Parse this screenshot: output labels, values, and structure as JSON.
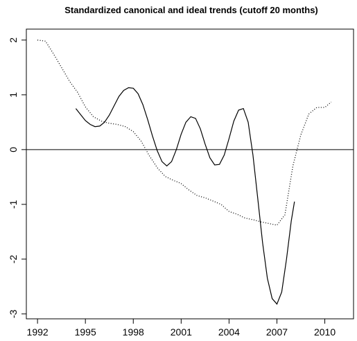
{
  "chart_data": {
    "type": "line",
    "title": "Standardized canonical and ideal trends (cutoff 20 months)",
    "xlim": [
      1991.3,
      2011.8
    ],
    "ylim": [
      -3.09,
      2.2
    ],
    "xticks": [
      1992,
      1995,
      1998,
      2001,
      2004,
      2007,
      2010
    ],
    "yticks": [
      -3,
      -2,
      -1,
      0,
      1,
      2
    ],
    "hline": 0,
    "series": [
      {
        "color": "#000000",
        "style": "solid",
        "x": [
          1994.4,
          1994.75,
          1995.0,
          1995.3,
          1995.6,
          1995.9,
          1996.2,
          1996.5,
          1996.8,
          1997.1,
          1997.4,
          1997.7,
          1998.0,
          1998.3,
          1998.6,
          1998.9,
          1999.2,
          1999.5,
          1999.8,
          2000.1,
          2000.4,
          2000.7,
          2001.0,
          2001.3,
          2001.6,
          2001.9,
          2002.2,
          2002.5,
          2002.8,
          2003.1,
          2003.4,
          2003.7,
          2004.0,
          2004.3,
          2004.6,
          2004.9,
          2005.2,
          2005.5,
          2005.8,
          2006.1,
          2006.4,
          2006.7,
          2007.0,
          2007.3,
          2007.6,
          2007.9,
          2008.1
        ],
        "values": [
          0.75,
          0.62,
          0.53,
          0.46,
          0.42,
          0.43,
          0.5,
          0.63,
          0.8,
          0.97,
          1.08,
          1.13,
          1.12,
          1.02,
          0.82,
          0.55,
          0.25,
          -0.02,
          -0.22,
          -0.3,
          -0.22,
          0.0,
          0.28,
          0.5,
          0.6,
          0.57,
          0.38,
          0.1,
          -0.15,
          -0.28,
          -0.27,
          -0.1,
          0.2,
          0.52,
          0.72,
          0.75,
          0.5,
          -0.1,
          -0.9,
          -1.7,
          -2.35,
          -2.72,
          -2.82,
          -2.6,
          -2.0,
          -1.3,
          -0.95
        ]
      },
      {
        "color": "#000000",
        "style": "dotted",
        "x": [
          1992.0,
          1992.5,
          1993.0,
          1993.5,
          1994.0,
          1994.5,
          1995.0,
          1995.5,
          1996.0,
          1996.5,
          1997.0,
          1997.5,
          1998.0,
          1998.5,
          1999.0,
          1999.5,
          2000.0,
          2000.5,
          2001.0,
          2001.5,
          2002.0,
          2002.5,
          2003.0,
          2003.5,
          2004.0,
          2004.5,
          2005.0,
          2005.5,
          2006.0,
          2006.5,
          2007.0,
          2007.5,
          2008.0,
          2008.5,
          2009.0,
          2009.5,
          2010.0,
          2010.4
        ],
        "values": [
          2.0,
          1.98,
          1.75,
          1.5,
          1.25,
          1.05,
          0.78,
          0.6,
          0.52,
          0.48,
          0.46,
          0.42,
          0.33,
          0.15,
          -0.11,
          -0.33,
          -0.49,
          -0.56,
          -0.62,
          -0.74,
          -0.84,
          -0.88,
          -0.94,
          -1.0,
          -1.13,
          -1.18,
          -1.25,
          -1.28,
          -1.32,
          -1.35,
          -1.38,
          -1.19,
          -0.3,
          0.27,
          0.65,
          0.77,
          0.77,
          0.87
        ]
      }
    ]
  }
}
